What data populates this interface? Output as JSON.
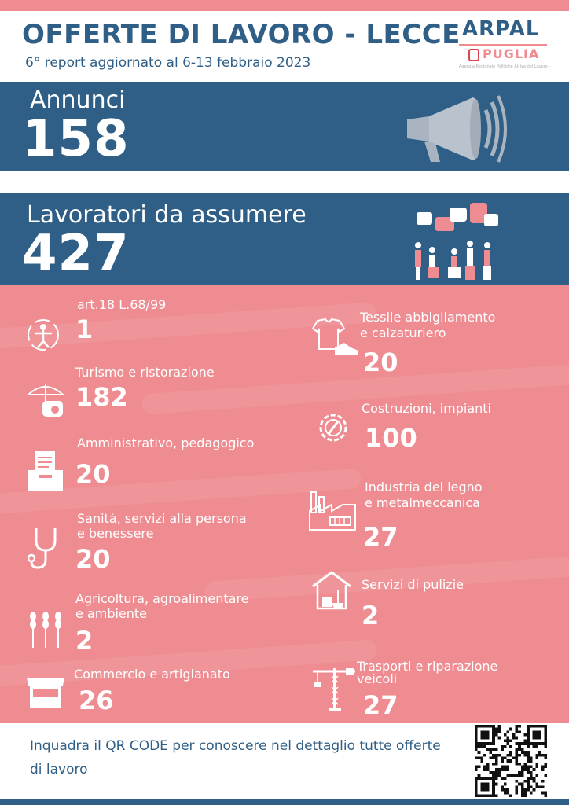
{
  "header": {
    "title": "OFFERTE DI LAVORO - LECCE",
    "subtitle": "6° report aggiornato al 6-13 febbraio 2023",
    "logo_top": "ARPAL",
    "logo_bottom": "PUGLIA",
    "logo_small": "Agenzia Regionale Politiche Attive del Lavoro - Puglia"
  },
  "annunci": {
    "label": "Annunci",
    "value": "158"
  },
  "lavoratori": {
    "label": "Lavoratori da assumere",
    "value": "427"
  },
  "sectors_left": [
    {
      "label": "art.18 L.68/99",
      "value": "1",
      "icon": "accessibility-icon"
    },
    {
      "label": "Turismo e ristorazione",
      "value": "182",
      "icon": "beach-umbrella-icon"
    },
    {
      "label": "Amministrativo, pedagogico",
      "value": "20",
      "icon": "document-tray-icon"
    },
    {
      "label": "Sanità, servizi alla persona",
      "label2": "e benessere",
      "value": "20",
      "icon": "stethoscope-icon"
    },
    {
      "label": "Agricoltura,  agroalimentare",
      "label2": "e ambiente",
      "value": "2",
      "icon": "wheat-icon"
    },
    {
      "label": "Commercio e artigianato",
      "value": "26",
      "icon": "market-stall-icon"
    }
  ],
  "sectors_right": [
    {
      "label": "Tessile abbigliamento",
      "label2": "e calzaturiero",
      "value": "20",
      "icon": "shirt-shoe-icon"
    },
    {
      "label": "Costruzioni, impianti",
      "value": "100",
      "icon": "gear-wrench-icon"
    },
    {
      "label": "Industria del legno",
      "label2": "e metalmeccanica",
      "value": "27",
      "icon": "factory-icon"
    },
    {
      "label": "Servizi di pulizie",
      "value": "2",
      "icon": "cleaning-house-icon"
    },
    {
      "label": "Trasporti e riparazione",
      "label2": "veicoli",
      "value": "27",
      "icon": "crane-icon"
    }
  ],
  "footer": {
    "text": "Inquadra il QR CODE per conoscere nel dettaglio tutte offerte di lavoro"
  },
  "colors": {
    "navy": "#2f5f86",
    "pink": "#ee8c91",
    "white": "#ffffff"
  }
}
